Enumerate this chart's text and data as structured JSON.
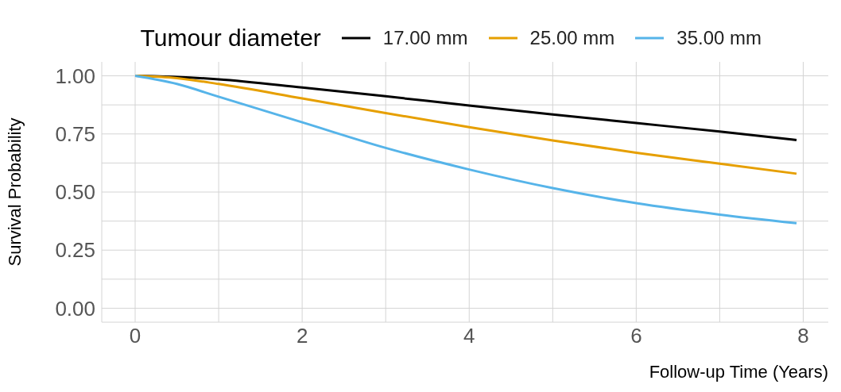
{
  "chart_data": {
    "type": "line",
    "xlabel": "Follow-up Time (Years)",
    "ylabel": "Survival Probability",
    "legend_title": "Tumour diameter",
    "legend": "top",
    "grid": true,
    "marker": "none",
    "line_style": "solid",
    "xlim": [
      -0.4,
      8.3
    ],
    "xticks": [
      0,
      2,
      4,
      6,
      8
    ],
    "ylim": [
      -0.06,
      1.06
    ],
    "yticks": [
      {
        "value": 0,
        "label": "0.00"
      },
      {
        "value": 0.25,
        "label": "0.25"
      },
      {
        "value": 0.5,
        "label": "0.50"
      },
      {
        "value": 0.75,
        "label": "0.75"
      },
      {
        "value": 1,
        "label": "1.00"
      }
    ],
    "x": [
      0,
      0.5,
      1,
      2,
      3,
      4,
      5,
      6,
      7,
      7.92
    ],
    "series": [
      {
        "name": "17.00 mm",
        "color": "#000000",
        "values": [
          1,
          0.995,
          0.985,
          0.95,
          0.912,
          0.872,
          0.834,
          0.797,
          0.76,
          0.724
        ]
      },
      {
        "name": "25.00 mm",
        "color": "#e69f00",
        "values": [
          1,
          0.99,
          0.965,
          0.903,
          0.84,
          0.779,
          0.722,
          0.669,
          0.622,
          0.579
        ]
      },
      {
        "name": "35.00 mm",
        "color": "#56b4e9",
        "values": [
          1,
          0.965,
          0.91,
          0.8,
          0.69,
          0.597,
          0.517,
          0.452,
          0.403,
          0.366
        ]
      }
    ]
  }
}
